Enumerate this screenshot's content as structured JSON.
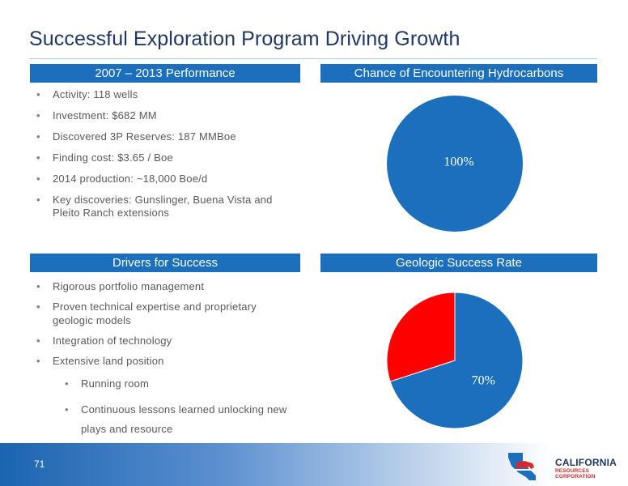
{
  "title": "Successful Exploration Program Driving Growth",
  "sections": {
    "performance": {
      "heading": "2007 – 2013 Performance",
      "items": [
        "Activity: 118 wells",
        "Investment: $682 MM",
        "Discovered 3P Reserves: 187 MMBoe",
        "Finding cost: $3.65 / Boe",
        "2014 production: ~18,000 Boe/d",
        "Key discoveries: Gunslinger, Buena Vista and Pleito Ranch extensions"
      ]
    },
    "hydrocarbons": {
      "heading": "Chance of Encountering Hydrocarbons"
    },
    "drivers": {
      "heading": "Drivers for Success",
      "items": [
        "Rigorous portfolio management",
        "Proven technical expertise and proprietary geologic models",
        "Integration of technology",
        "Extensive land position"
      ],
      "subitems": [
        "Running room",
        "Continuous lessons learned unlocking new plays and resource"
      ]
    },
    "geologic": {
      "heading": "Geologic Success Rate"
    }
  },
  "chart_data": [
    {
      "type": "pie",
      "title": "Chance of Encountering Hydrocarbons",
      "values": [
        100
      ],
      "labels": [
        "100%"
      ],
      "colors": [
        "#1b6fbd"
      ]
    },
    {
      "type": "pie",
      "title": "Geologic Success Rate",
      "values": [
        70,
        30
      ],
      "labels": [
        "70%",
        ""
      ],
      "colors": [
        "#1b6fbd",
        "#ff0000"
      ]
    }
  ],
  "footer": {
    "page_number": "71",
    "logo_name": "CALIFORNIA",
    "logo_sub": "RESOURCES CORPORATION"
  },
  "colors": {
    "header_blue": "#1b6fbd",
    "title_navy": "#1f3864",
    "pie_blue": "#1b6fbd",
    "pie_red": "#ff0000"
  }
}
